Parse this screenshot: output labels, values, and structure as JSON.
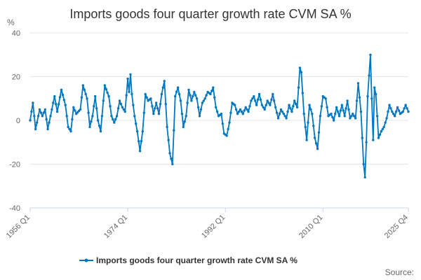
{
  "chart_data": {
    "type": "line",
    "title": "Imports goods four quarter growth rate CVM SA %",
    "ylabel": "%",
    "xlabel": "",
    "ylim": [
      -40,
      40
    ],
    "yticks": [
      -40,
      -20,
      0,
      20,
      40
    ],
    "xticks": [
      "1956 Q1",
      "1974 Q1",
      "1992 Q1",
      "2010 Q1",
      "2025 Q4"
    ],
    "legend": {
      "label": "Imports goods four quarter growth rate CVM SA %",
      "position": "bottom"
    },
    "source_label": "Source:",
    "grid": true,
    "color": "#0077c0",
    "series": [
      {
        "name": "Imports goods four quarter growth rate CVM SA %",
        "keyframes": [
          [
            "1956 Q1",
            0
          ],
          [
            "1956 Q3",
            8
          ],
          [
            "1957 Q1",
            -4
          ],
          [
            "1957 Q4",
            5
          ],
          [
            "1958 Q2",
            2
          ],
          [
            "1958 Q4",
            5
          ],
          [
            "1959 Q2",
            -4
          ],
          [
            "1960 Q1",
            5
          ],
          [
            "1960 Q3",
            11
          ],
          [
            "1961 Q1",
            4
          ],
          [
            "1961 Q4",
            14
          ],
          [
            "1962 Q3",
            7
          ],
          [
            "1963 Q1",
            -3
          ],
          [
            "1963 Q3",
            -5
          ],
          [
            "1964 Q1",
            6
          ],
          [
            "1964 Q3",
            3
          ],
          [
            "1965 Q2",
            5
          ],
          [
            "1965 Q4",
            16
          ],
          [
            "1966 Q3",
            10
          ],
          [
            "1967 Q1",
            -3
          ],
          [
            "1967 Q3",
            2
          ],
          [
            "1968 Q1",
            11
          ],
          [
            "1968 Q3",
            0
          ],
          [
            "1969 Q1",
            -5
          ],
          [
            "1969 Q4",
            16
          ],
          [
            "1970 Q3",
            11
          ],
          [
            "1971 Q1",
            2
          ],
          [
            "1971 Q3",
            -1
          ],
          [
            "1972 Q1",
            2
          ],
          [
            "1972 Q3",
            9
          ],
          [
            "1973 Q1",
            6
          ],
          [
            "1973 Q3",
            4
          ],
          [
            "1974 Q1",
            19
          ],
          [
            "1974 Q2",
            13
          ],
          [
            "1974 Q3",
            21
          ],
          [
            "1974 Q4",
            12
          ],
          [
            "1975 Q2",
            2
          ],
          [
            "1975 Q4",
            -5
          ],
          [
            "1976 Q2",
            -14
          ],
          [
            "1976 Q4",
            -5
          ],
          [
            "1977 Q2",
            12
          ],
          [
            "1977 Q4",
            9
          ],
          [
            "1978 Q2",
            10
          ],
          [
            "1978 Q4",
            3
          ],
          [
            "1979 Q2",
            8
          ],
          [
            "1979 Q4",
            3
          ],
          [
            "1980 Q2",
            12
          ],
          [
            "1980 Q4",
            18
          ],
          [
            "1981 Q2",
            -3
          ],
          [
            "1981 Q4",
            -15
          ],
          [
            "1982 Q2",
            -20
          ],
          [
            "1982 Q4",
            11
          ],
          [
            "1983 Q2",
            15
          ],
          [
            "1983 Q4",
            9
          ],
          [
            "1984 Q2",
            -3
          ],
          [
            "1984 Q4",
            2
          ],
          [
            "1985 Q2",
            14
          ],
          [
            "1985 Q4",
            9
          ],
          [
            "1986 Q2",
            13
          ],
          [
            "1986 Q4",
            10
          ],
          [
            "1987 Q2",
            2
          ],
          [
            "1987 Q4",
            8
          ],
          [
            "1988 Q2",
            10
          ],
          [
            "1988 Q4",
            13
          ],
          [
            "1989 Q2",
            12
          ],
          [
            "1989 Q4",
            15
          ],
          [
            "1990 Q2",
            6
          ],
          [
            "1990 Q4",
            2
          ],
          [
            "1991 Q2",
            3
          ],
          [
            "1991 Q4",
            -6
          ],
          [
            "1992 Q2",
            -7
          ],
          [
            "1992 Q4",
            -1
          ],
          [
            "1993 Q2",
            8
          ],
          [
            "1993 Q4",
            7
          ],
          [
            "1994 Q2",
            3
          ],
          [
            "1994 Q4",
            5
          ],
          [
            "1995 Q2",
            3
          ],
          [
            "1995 Q4",
            6
          ],
          [
            "1996 Q2",
            4
          ],
          [
            "1996 Q4",
            9
          ],
          [
            "1997 Q2",
            11
          ],
          [
            "1997 Q4",
            7
          ],
          [
            "1998 Q2",
            12
          ],
          [
            "1998 Q4",
            7
          ],
          [
            "1999 Q2",
            5
          ],
          [
            "1999 Q4",
            9
          ],
          [
            "2000 Q2",
            7
          ],
          [
            "2000 Q4",
            12
          ],
          [
            "2001 Q2",
            6
          ],
          [
            "2001 Q4",
            1
          ],
          [
            "2002 Q2",
            5
          ],
          [
            "2002 Q4",
            3
          ],
          [
            "2003 Q2",
            1
          ],
          [
            "2003 Q4",
            7
          ],
          [
            "2004 Q2",
            4
          ],
          [
            "2004 Q4",
            9
          ],
          [
            "2005 Q2",
            6
          ],
          [
            "2005 Q4",
            24
          ],
          [
            "2006 Q1",
            22
          ],
          [
            "2006 Q3",
            3
          ],
          [
            "2007 Q1",
            -9
          ],
          [
            "2007 Q3",
            7
          ],
          [
            "2008 Q1",
            3
          ],
          [
            "2008 Q3",
            -8
          ],
          [
            "2009 Q1",
            -13
          ],
          [
            "2009 Q3",
            2
          ],
          [
            "2010 Q1",
            11
          ],
          [
            "2010 Q3",
            10
          ],
          [
            "2011 Q1",
            2
          ],
          [
            "2011 Q3",
            3
          ],
          [
            "2012 Q1",
            0
          ],
          [
            "2012 Q3",
            6
          ],
          [
            "2013 Q1",
            2
          ],
          [
            "2013 Q3",
            7
          ],
          [
            "2014 Q1",
            2
          ],
          [
            "2014 Q3",
            9
          ],
          [
            "2015 Q1",
            1
          ],
          [
            "2015 Q3",
            3
          ],
          [
            "2016 Q1",
            1
          ],
          [
            "2016 Q3",
            17
          ],
          [
            "2017 Q1",
            4
          ],
          [
            "2017 Q3",
            -20
          ],
          [
            "2017 Q4",
            -26
          ],
          [
            "2018 Q1",
            -10
          ],
          [
            "2018 Q2",
            11
          ],
          [
            "2018 Q4",
            30
          ],
          [
            "2019 Q1",
            10
          ],
          [
            "2019 Q2",
            -9
          ],
          [
            "2019 Q3",
            15
          ],
          [
            "2019 Q4",
            12
          ],
          [
            "2020 Q2",
            -8
          ],
          [
            "2020 Q4",
            -5
          ],
          [
            "2021 Q2",
            -3
          ],
          [
            "2021 Q4",
            1
          ],
          [
            "2022 Q2",
            7
          ],
          [
            "2022 Q4",
            4
          ],
          [
            "2023 Q2",
            2
          ],
          [
            "2023 Q4",
            6
          ],
          [
            "2024 Q2",
            3
          ],
          [
            "2024 Q4",
            4
          ],
          [
            "2025 Q2",
            7
          ],
          [
            "2025 Q4",
            4
          ]
        ]
      }
    ]
  }
}
